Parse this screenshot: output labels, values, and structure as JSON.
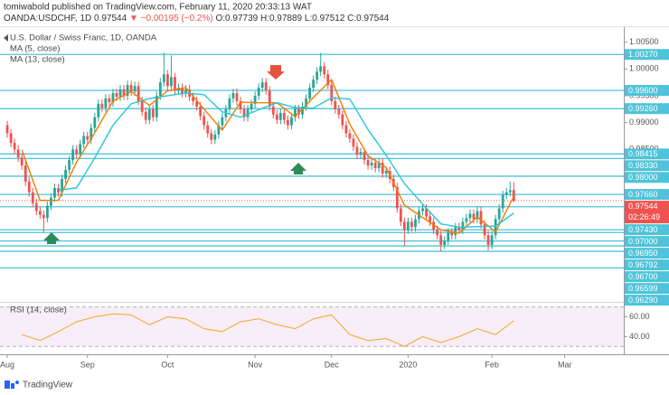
{
  "header": {
    "author_line": "tomiwabold published on TradingView.com, February 11, 2020 20:33:13 WAT",
    "symbol": "OANDA:USDCHF, 1D",
    "price": "0.97544",
    "change": "▼ −0.00195 (−0.2%)",
    "ohlc": "O:0.97739 H:0.97889 L:0.97512 C:0.97544"
  },
  "footer": {
    "brand": "TradingView"
  },
  "chart_data": {
    "type": "candlestick",
    "title": "U.S. Dollar / Swiss Franc, 1D, OANDA",
    "up_color": "#26a69a",
    "down_color": "#ef5350",
    "xlim": [
      -2,
      169.2
    ],
    "xticks": [
      {
        "value": 0,
        "label": "Aug"
      },
      {
        "value": 22,
        "label": "Sep"
      },
      {
        "value": 44,
        "label": "Oct"
      },
      {
        "value": 68,
        "label": "Nov"
      },
      {
        "value": 89,
        "label": "Dec"
      },
      {
        "value": 110,
        "label": "2020"
      },
      {
        "value": 133,
        "label": "Feb"
      },
      {
        "value": 153,
        "label": "Mar"
      }
    ],
    "ylim": [
      0.9569,
      1.0078
    ],
    "yticks": [
      {
        "value": 1.005,
        "label": "1.00500"
      },
      {
        "value": 1,
        "label": "1.00000"
      },
      {
        "value": 0.995,
        "label": "0.99500"
      },
      {
        "value": 0.99,
        "label": "0.99000"
      },
      {
        "value": 0.985,
        "label": "0.98500"
      }
    ],
    "open": [
      0.9895,
      0.988,
      0.9862,
      0.985,
      0.9835,
      0.982,
      0.979,
      0.977,
      0.975,
      0.9735,
      0.9728,
      0.9722,
      0.9745,
      0.976,
      0.9778,
      0.977,
      0.9795,
      0.9812,
      0.983,
      0.985,
      0.9842,
      0.986,
      0.9875,
      0.9868,
      0.989,
      0.991,
      0.9935,
      0.9928,
      0.9945,
      0.9938,
      0.9955,
      0.9948,
      0.9962,
      0.995,
      0.997,
      0.9958,
      0.9968,
      0.994,
      0.992,
      0.9905,
      0.9925,
      0.991,
      0.995,
      0.9975,
      0.999,
      0.9968,
      0.9985,
      0.996,
      0.9965,
      0.9955,
      0.9962,
      0.9948,
      0.994,
      0.993,
      0.9912,
      0.9895,
      0.988,
      0.9868,
      0.9878,
      0.9895,
      0.991,
      0.9925,
      0.9945,
      0.9955,
      0.994,
      0.9925,
      0.991,
      0.9925,
      0.9935,
      0.995,
      0.9965,
      0.9975,
      0.996,
      0.993,
      0.9915,
      0.9905,
      0.9918,
      0.9905,
      0.9895,
      0.991,
      0.9925,
      0.9915,
      0.993,
      0.9945,
      0.9965,
      0.998,
      0.9995,
      1.0005,
      0.999,
      0.997,
      0.994,
      0.9925,
      0.9915,
      0.9895,
      0.988,
      0.987,
      0.9855,
      0.984,
      0.9845,
      0.983,
      0.982,
      0.9825,
      0.9815,
      0.9825,
      0.9805,
      0.981,
      0.9795,
      0.978,
      0.974,
      0.9715,
      0.97,
      0.9715,
      0.9705,
      0.972,
      0.9735,
      0.974,
      0.9725,
      0.9715,
      0.97,
      0.969,
      0.9672,
      0.968,
      0.9695,
      0.969,
      0.9705,
      0.97,
      0.9715,
      0.9722,
      0.973,
      0.972,
      0.9735,
      0.971,
      0.969,
      0.9672,
      0.969,
      0.972,
      0.974,
      0.9765,
      0.977,
      0.97739
    ],
    "high": [
      0.9903,
      0.9888,
      0.987,
      0.9858,
      0.9843,
      0.9828,
      0.9798,
      0.9778,
      0.9758,
      0.9743,
      0.9736,
      0.9753,
      0.9768,
      0.9786,
      0.9786,
      0.9803,
      0.982,
      0.9838,
      0.9858,
      0.9858,
      0.9868,
      0.9883,
      0.9883,
      0.9898,
      0.9918,
      0.9943,
      0.9943,
      0.9953,
      0.9953,
      0.9963,
      0.9963,
      0.997,
      0.997,
      0.9978,
      0.9978,
      0.9976,
      0.9976,
      0.9948,
      0.9928,
      0.9933,
      0.9933,
      0.9958,
      0.9983,
      1.003,
      0.9998,
      1.0025,
      0.9993,
      0.9973,
      0.9973,
      0.997,
      0.997,
      0.9956,
      0.9948,
      0.9938,
      0.992,
      0.9903,
      0.9888,
      0.9886,
      0.9903,
      0.9918,
      0.9933,
      0.9953,
      0.9963,
      0.9963,
      0.9948,
      0.9933,
      0.9933,
      0.9943,
      0.9958,
      0.9973,
      0.9983,
      0.9983,
      0.9968,
      0.9938,
      0.9923,
      0.9926,
      0.9926,
      0.9913,
      0.9918,
      0.9933,
      0.9933,
      0.9938,
      0.9953,
      0.9973,
      0.9988,
      1.0003,
      1.003,
      1.0013,
      0.9998,
      0.9978,
      0.9948,
      0.9933,
      0.9923,
      0.9903,
      0.9888,
      0.9878,
      0.9863,
      0.9853,
      0.9853,
      0.9838,
      0.9833,
      0.9833,
      0.9833,
      0.9833,
      0.9818,
      0.9818,
      0.9803,
      0.9788,
      0.9748,
      0.9723,
      0.9723,
      0.9723,
      0.9728,
      0.9743,
      0.9748,
      0.9748,
      0.9733,
      0.9723,
      0.9708,
      0.9698,
      0.9688,
      0.9703,
      0.9703,
      0.9713,
      0.9713,
      0.9723,
      0.973,
      0.9738,
      0.9738,
      0.9743,
      0.9743,
      0.9718,
      0.9698,
      0.9698,
      0.9728,
      0.9748,
      0.9773,
      0.9778,
      0.979,
      0.97889
    ],
    "low": [
      0.9872,
      0.9854,
      0.9842,
      0.9827,
      0.9812,
      0.9782,
      0.9762,
      0.9742,
      0.9727,
      0.972,
      0.9695,
      0.9714,
      0.9737,
      0.9752,
      0.9762,
      0.9762,
      0.9787,
      0.9804,
      0.9822,
      0.9834,
      0.9834,
      0.9852,
      0.986,
      0.986,
      0.9882,
      0.9902,
      0.992,
      0.992,
      0.993,
      0.993,
      0.994,
      0.994,
      0.9942,
      0.9942,
      0.995,
      0.995,
      0.9932,
      0.9912,
      0.9897,
      0.9897,
      0.9902,
      0.9902,
      0.9942,
      0.9967,
      0.996,
      0.996,
      0.9952,
      0.9952,
      0.9947,
      0.9947,
      0.994,
      0.9932,
      0.9922,
      0.9904,
      0.9887,
      0.9872,
      0.986,
      0.986,
      0.987,
      0.9887,
      0.9902,
      0.9917,
      0.9937,
      0.9932,
      0.9917,
      0.9902,
      0.9902,
      0.9917,
      0.9927,
      0.9942,
      0.9957,
      0.9952,
      0.9922,
      0.9907,
      0.9897,
      0.9897,
      0.9897,
      0.9887,
      0.9887,
      0.9902,
      0.9907,
      0.9907,
      0.9922,
      0.9937,
      0.9957,
      0.9972,
      0.9987,
      0.9982,
      0.9962,
      0.9932,
      0.9917,
      0.9907,
      0.9887,
      0.9872,
      0.9862,
      0.9847,
      0.9832,
      0.9832,
      0.9822,
      0.9812,
      0.9812,
      0.9807,
      0.9807,
      0.9797,
      0.9797,
      0.9787,
      0.9772,
      0.9732,
      0.9707,
      0.967,
      0.9692,
      0.9697,
      0.9697,
      0.9712,
      0.9727,
      0.9717,
      0.9707,
      0.9692,
      0.9682,
      0.966,
      0.9664,
      0.9672,
      0.9682,
      0.9682,
      0.9692,
      0.9692,
      0.9707,
      0.9714,
      0.9712,
      0.9712,
      0.9702,
      0.9682,
      0.9662,
      0.9664,
      0.9682,
      0.9712,
      0.9732,
      0.9757,
      0.9762,
      0.97512
    ],
    "close": [
      0.988,
      0.9862,
      0.985,
      0.9835,
      0.982,
      0.979,
      0.977,
      0.975,
      0.9735,
      0.9728,
      0.9722,
      0.9745,
      0.976,
      0.9778,
      0.977,
      0.9795,
      0.9812,
      0.983,
      0.985,
      0.9842,
      0.986,
      0.9875,
      0.9868,
      0.989,
      0.991,
      0.9935,
      0.9928,
      0.9945,
      0.9938,
      0.9955,
      0.9948,
      0.9962,
      0.995,
      0.997,
      0.9958,
      0.9968,
      0.994,
      0.992,
      0.9905,
      0.9925,
      0.991,
      0.995,
      0.9975,
      0.999,
      0.9968,
      0.9985,
      0.996,
      0.9965,
      0.9955,
      0.9962,
      0.9948,
      0.994,
      0.993,
      0.9912,
      0.9895,
      0.988,
      0.9868,
      0.9878,
      0.9895,
      0.991,
      0.9925,
      0.9945,
      0.9955,
      0.994,
      0.9925,
      0.991,
      0.9925,
      0.9935,
      0.995,
      0.9965,
      0.9975,
      0.996,
      0.993,
      0.9915,
      0.9905,
      0.9918,
      0.9905,
      0.9895,
      0.991,
      0.9925,
      0.9915,
      0.993,
      0.9945,
      0.9965,
      0.998,
      0.9995,
      1.0005,
      0.999,
      0.997,
      0.994,
      0.9925,
      0.9915,
      0.9895,
      0.988,
      0.987,
      0.9855,
      0.984,
      0.9845,
      0.983,
      0.982,
      0.9825,
      0.9815,
      0.9825,
      0.9805,
      0.981,
      0.9795,
      0.978,
      0.974,
      0.9715,
      0.97,
      0.9715,
      0.9705,
      0.972,
      0.9735,
      0.974,
      0.9725,
      0.9715,
      0.97,
      0.969,
      0.9672,
      0.968,
      0.9695,
      0.969,
      0.9705,
      0.97,
      0.9715,
      0.9722,
      0.973,
      0.972,
      0.9735,
      0.971,
      0.969,
      0.9672,
      0.969,
      0.972,
      0.974,
      0.9765,
      0.977,
      0.97739,
      0.97544
    ],
    "level_color": "#4fc3d9",
    "levels": [
      {
        "value": 1.0027,
        "label": "1.00270"
      },
      {
        "value": 0.996,
        "label": "0.99600"
      },
      {
        "value": 0.9926,
        "label": "0.99260"
      },
      {
        "value": 0.98415,
        "label": "0.98415"
      },
      {
        "value": 0.9833,
        "label": "0.98330"
      },
      {
        "value": 0.98,
        "label": "0.98000"
      },
      {
        "value": 0.9766,
        "label": "0.97660"
      },
      {
        "value": 0.9743,
        "label": "0.97430"
      },
      {
        "value": 0.97,
        "label": "0.97000"
      },
      {
        "value": 0.9695,
        "label": "0.96950"
      },
      {
        "value": 0.96792,
        "label": "0.96792"
      },
      {
        "value": 0.967,
        "label": "0.96700"
      },
      {
        "value": 0.96599,
        "label": "0.96599"
      },
      {
        "value": 0.9629,
        "label": "0.96290"
      }
    ],
    "last_price": {
      "value": 0.97544,
      "label": "0.97544"
    },
    "countdown": "02:26:49",
    "indicators": [
      {
        "name": "MA (5, close)",
        "color": "#f57c00",
        "x": [
          4,
          9,
          14,
          19,
          24,
          29,
          34,
          39,
          44,
          49,
          54,
          59,
          64,
          69,
          74,
          79,
          84,
          89,
          94,
          99,
          104,
          109,
          114,
          119,
          124,
          129,
          134,
          139
        ],
        "values": [
          0.9849,
          0.9755,
          0.9755,
          0.9826,
          0.9881,
          0.994,
          0.9958,
          0.9932,
          0.9959,
          0.9965,
          0.9925,
          0.9886,
          0.9938,
          0.9937,
          0.9937,
          0.9911,
          0.9947,
          0.998,
          0.9897,
          0.9838,
          0.9816,
          0.9746,
          0.9723,
          0.97,
          0.9694,
          0.9724,
          0.9696,
          0.9762
        ]
      },
      {
        "name": "MA (13, close)",
        "color": "#26c6da",
        "x": [
          14,
          19,
          24,
          29,
          34,
          39,
          44,
          49,
          54,
          59,
          64,
          69,
          74,
          79,
          84,
          89,
          94,
          99,
          104,
          109,
          114,
          119,
          124,
          129,
          134,
          139
        ],
        "values": [
          0.9774,
          0.9778,
          0.9834,
          0.9895,
          0.9935,
          0.9945,
          0.995,
          0.9955,
          0.9952,
          0.992,
          0.991,
          0.9924,
          0.9937,
          0.9928,
          0.9927,
          0.9946,
          0.9944,
          0.9887,
          0.9839,
          0.9786,
          0.9748,
          0.9711,
          0.9705,
          0.9706,
          0.9707,
          0.9731
        ]
      }
    ],
    "rsi": {
      "name": "RSI (14, close)",
      "color": "#f5a623",
      "band": [
        30,
        70
      ],
      "ylim": [
        25.7,
        73.3
      ],
      "yticks": [
        {
          "value": 60,
          "label": "60.00"
        },
        {
          "value": 40,
          "label": "40.00"
        }
      ],
      "x": [
        4,
        9,
        14,
        19,
        24,
        29,
        34,
        39,
        44,
        49,
        54,
        59,
        64,
        69,
        74,
        79,
        84,
        89,
        94,
        99,
        104,
        109,
        114,
        119,
        124,
        129,
        134,
        139
      ],
      "values": [
        42,
        36,
        45,
        55,
        60,
        63,
        62,
        52,
        60,
        58,
        48,
        45,
        55,
        58,
        52,
        48,
        58,
        62,
        42,
        36,
        38,
        30,
        40,
        34,
        40,
        48,
        42,
        56
      ]
    }
  }
}
